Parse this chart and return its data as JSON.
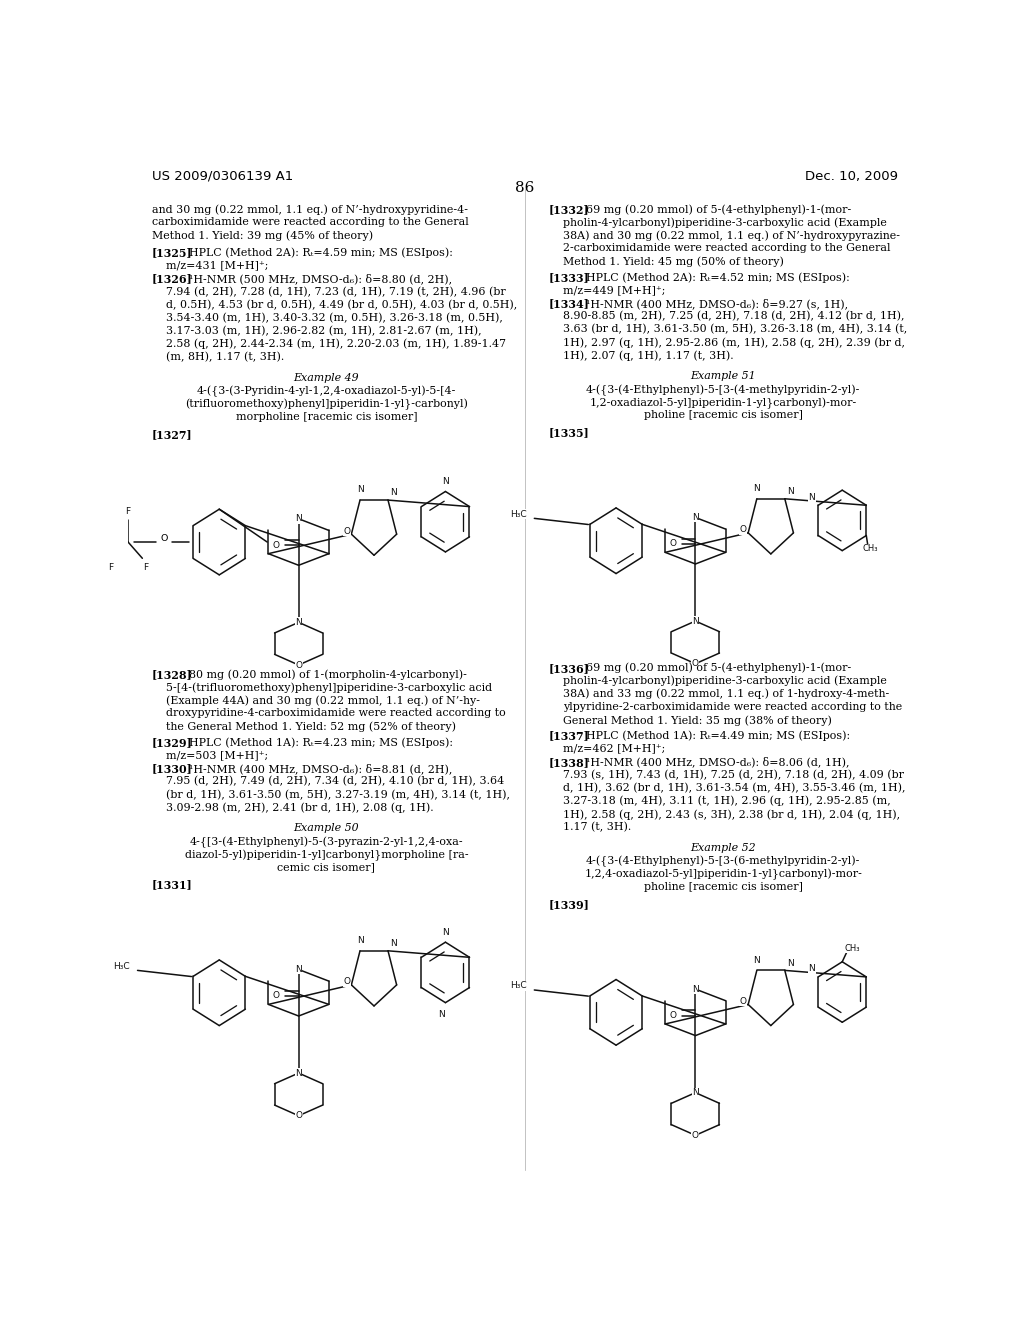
{
  "page_header_left": "US 2009/0306139 A1",
  "page_header_right": "Dec. 10, 2009",
  "page_number": "86",
  "bg": "#ffffff",
  "fg": "#000000",
  "lh": 0.01285,
  "fs": 7.9,
  "indent": 0.018
}
